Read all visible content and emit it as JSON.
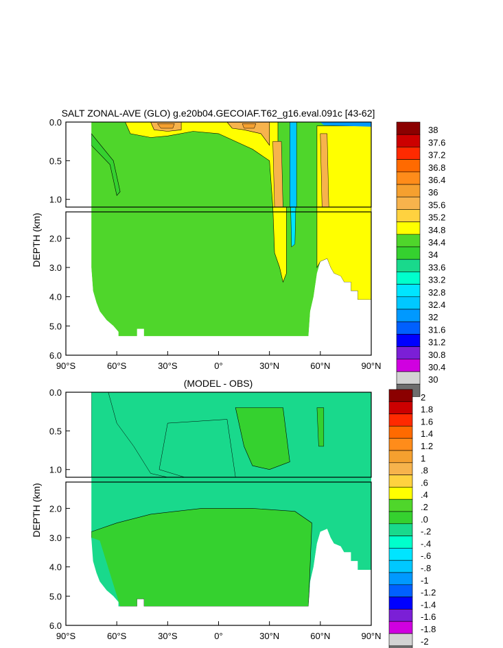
{
  "chart_data": [
    {
      "type": "heatmap",
      "title": "SALT ZONAL-AVE (GLO) g.e20b04.GECOIAF.T62_g16.eval.091c [43-62]",
      "ylabel": "DEPTH (km)",
      "xlabel": "",
      "x_ticks": [
        "90°S",
        "60°S",
        "30°S",
        "0°",
        "30°N",
        "60°N",
        "90°N"
      ],
      "y_ticks_upper": [
        "0.0",
        "0.5",
        "1.0"
      ],
      "y_ticks_lower": [
        "2.0",
        "3.0",
        "4.0",
        "5.0",
        "6.0"
      ],
      "xlim": [
        -90,
        90
      ],
      "ylim_upper_km": [
        0,
        1.1
      ],
      "ylim_lower_km": [
        1.1,
        6.0
      ],
      "colorbar_levels": [
        "38",
        "37.6",
        "37.2",
        "36.8",
        "36.4",
        "36",
        "35.6",
        "35.2",
        "34.8",
        "34.4",
        "34",
        "33.6",
        "33.2",
        "32.8",
        "32.4",
        "32",
        "31.6",
        "31.2",
        "30.8",
        "30.4",
        "30"
      ],
      "colorbar_colors": [
        "#8b0000",
        "#cc0000",
        "#ff2a00",
        "#ff6a00",
        "#ff8c1a",
        "#f5a02f",
        "#f7b34c",
        "#ffd23f",
        "#ffff00",
        "#4fd62b",
        "#35d12f",
        "#19d98c",
        "#00ffcc",
        "#00e5ff",
        "#00c8ff",
        "#0099ff",
        "#0060ff",
        "#0000ff",
        "#7b1fd6",
        "#d000e0",
        "#d3d3d3",
        "#6e6e6e"
      ]
    },
    {
      "type": "heatmap",
      "title": "(MODEL - OBS)",
      "ylabel": "DEPTH (km)",
      "xlabel": "",
      "x_ticks": [
        "90°S",
        "60°S",
        "30°S",
        "0°",
        "30°N",
        "60°N",
        "90°N"
      ],
      "y_ticks_upper": [
        "0.0",
        "0.5",
        "1.0"
      ],
      "y_ticks_lower": [
        "2.0",
        "3.0",
        "4.0",
        "5.0",
        "6.0"
      ],
      "xlim": [
        -90,
        90
      ],
      "ylim_upper_km": [
        0,
        1.1
      ],
      "ylim_lower_km": [
        1.1,
        6.0
      ],
      "colorbar_levels": [
        "2",
        "1.8",
        "1.6",
        "1.4",
        "1.2",
        "1",
        ".8",
        ".6",
        ".4",
        ".2",
        ".0",
        "-.2",
        "-.4",
        "-.6",
        "-.8",
        "-1",
        "-1.2",
        "-1.4",
        "-1.6",
        "-1.8",
        "-2"
      ],
      "colorbar_colors": [
        "#8b0000",
        "#cc0000",
        "#ff2a00",
        "#ff6a00",
        "#ff8c1a",
        "#f5a02f",
        "#f7b34c",
        "#ffd23f",
        "#ffff00",
        "#4fd62b",
        "#35d12f",
        "#19d98c",
        "#00ffcc",
        "#00e5ff",
        "#00c8ff",
        "#0099ff",
        "#0060ff",
        "#0000ff",
        "#7b1fd6",
        "#d000e0",
        "#d3d3d3",
        "#6e6e6e"
      ]
    }
  ]
}
